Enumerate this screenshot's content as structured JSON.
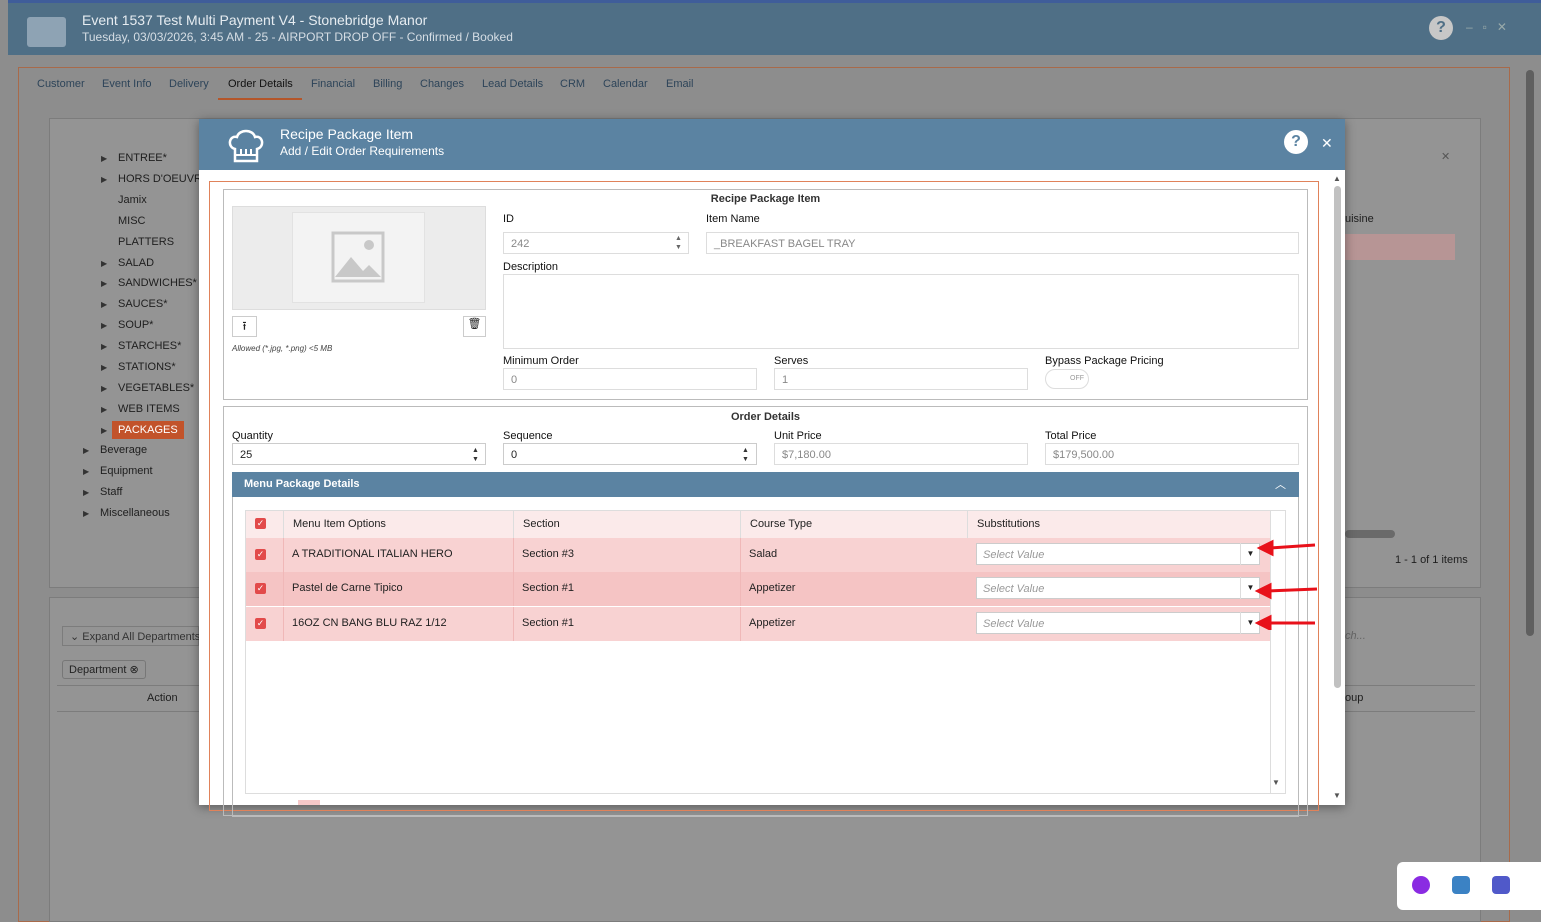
{
  "window": {
    "title": "Event 1537 Test Multi Payment V4 - Stonebridge Manor",
    "subtitle": "Tuesday, 03/03/2026, 3:45 AM - 25 - AIRPORT DROP OFF - Confirmed / Booked"
  },
  "tabs": [
    "Customer",
    "Event Info",
    "Delivery",
    "Order Details",
    "Financial",
    "Billing",
    "Changes",
    "Lead Details",
    "CRM",
    "Calendar",
    "Email"
  ],
  "tree": {
    "menu_categories": [
      "ENTREE*",
      "HORS D'OEUVR",
      "Jamix",
      "MISC",
      "PLATTERS",
      "SALAD",
      "SANDWICHES*",
      "SAUCES*",
      "SOUP*",
      "STARCHES*",
      "STATIONS*",
      "VEGETABLES*",
      "WEB ITEMS",
      "PACKAGES"
    ],
    "departments": [
      "Beverage",
      "Equipment",
      "Staff",
      "Miscellaneous"
    ]
  },
  "background": {
    "cuisine_header": "uisine",
    "pager": "1 - 1 of 1 items",
    "expand_all": "Expand All Departments",
    "department_chip": "Department",
    "action_header": "Action",
    "group_header": "oup",
    "search": "ch..."
  },
  "modal": {
    "title": "Recipe Package Item",
    "subtitle": "Add / Edit Order Requirements",
    "item": {
      "heading": "Recipe Package Item",
      "id_label": "ID",
      "id_value": "242",
      "item_name_label": "Item Name",
      "item_name_value": "_BREAKFAST BAGEL TRAY",
      "description_label": "Description",
      "file_hint": "Allowed (*.jpg, *.png) <5 MB",
      "min_order_label": "Minimum Order",
      "min_order_value": "0",
      "serves_label": "Serves",
      "serves_value": "1",
      "bypass_label": "Bypass Package Pricing",
      "toggle": "OFF"
    },
    "order": {
      "heading": "Order Details",
      "quantity_label": "Quantity",
      "quantity_value": "25",
      "sequence_label": "Sequence",
      "sequence_value": "0",
      "unit_price_label": "Unit Price",
      "unit_price_value": "$7,180.00",
      "total_price_label": "Total Price",
      "total_price_value": "$179,500.00"
    },
    "grid": {
      "title": "Menu Package Details",
      "headers": [
        "Menu Item Options",
        "Section",
        "Course Type",
        "Substitutions"
      ],
      "rows": [
        [
          "A TRADITIONAL ITALIAN HERO",
          "Section #3",
          "Salad",
          "Select Value"
        ],
        [
          "Pastel de Carne Tipico",
          "Section #1",
          "Appetizer",
          "Select Value"
        ],
        [
          "16OZ CN BANG BLU RAZ 1/12",
          "Section #1",
          "Appetizer",
          "Select Value"
        ]
      ]
    }
  }
}
